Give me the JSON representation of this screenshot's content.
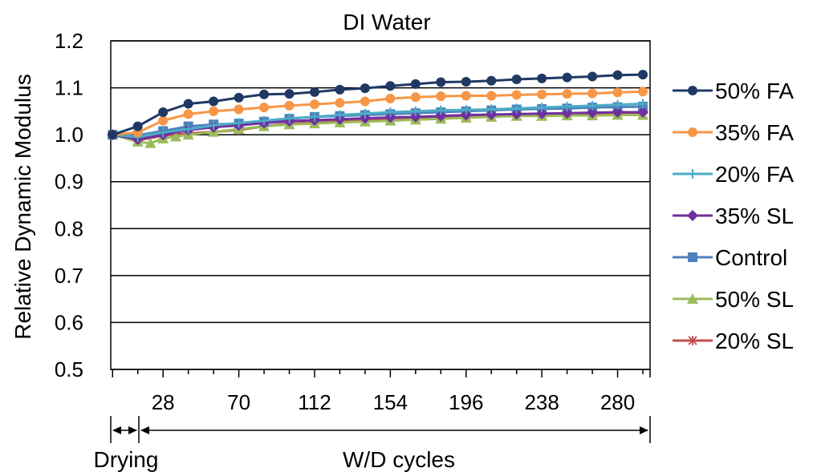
{
  "chart_data": {
    "type": "line",
    "title": "DI Water",
    "ylabel": "Relative Dynamic Modulus",
    "xlabel": "W/D cycles",
    "drying_label": "Drying",
    "ylim": [
      0.5,
      1.2
    ],
    "yticks": [
      "0.5",
      "0.6",
      "0.7",
      "0.8",
      "0.9",
      "1.0",
      "1.1",
      "1.2"
    ],
    "xticks": [
      "28",
      "70",
      "112",
      "154",
      "196",
      "238",
      "280"
    ],
    "grid": true,
    "legend_position": "right",
    "x": [
      0,
      14,
      21,
      28,
      35,
      42,
      49,
      56,
      63,
      70,
      77,
      84,
      91,
      98,
      105,
      112,
      119,
      126,
      133,
      140,
      147,
      154,
      161,
      168,
      175,
      182,
      189,
      196,
      203,
      210,
      217,
      224,
      231,
      238,
      245,
      252,
      259,
      266,
      273,
      280,
      287,
      294
    ],
    "series": [
      {
        "name": "50% FA",
        "color": "#203864",
        "marker": "circle",
        "x": [
          0,
          14,
          28,
          42,
          56,
          70,
          84,
          98,
          112,
          126,
          140,
          154,
          168,
          182,
          196,
          210,
          224,
          238,
          252,
          266,
          280,
          294
        ],
        "values": [
          1.0,
          1.018,
          1.048,
          1.066,
          1.071,
          1.079,
          1.086,
          1.087,
          1.091,
          1.096,
          1.099,
          1.104,
          1.108,
          1.112,
          1.113,
          1.115,
          1.118,
          1.12,
          1.122,
          1.124,
          1.127,
          1.128
        ]
      },
      {
        "name": "35% FA",
        "color": "#f79646",
        "marker": "circle",
        "x": [
          0,
          14,
          28,
          42,
          56,
          70,
          84,
          98,
          112,
          126,
          140,
          154,
          168,
          182,
          196,
          210,
          224,
          238,
          252,
          266,
          280,
          294
        ],
        "values": [
          1.0,
          1.005,
          1.03,
          1.044,
          1.05,
          1.054,
          1.058,
          1.062,
          1.065,
          1.068,
          1.071,
          1.077,
          1.08,
          1.082,
          1.083,
          1.083,
          1.085,
          1.086,
          1.087,
          1.088,
          1.09,
          1.092
        ]
      },
      {
        "name": "20% FA",
        "color": "#4bacc6",
        "marker": "plus",
        "x": [
          0,
          14,
          28,
          42,
          56,
          70,
          84,
          98,
          112,
          126,
          140,
          154,
          168,
          182,
          196,
          210,
          224,
          238,
          252,
          266,
          280,
          294
        ],
        "values": [
          1.0,
          0.995,
          1.005,
          1.012,
          1.02,
          1.025,
          1.03,
          1.035,
          1.038,
          1.042,
          1.045,
          1.048,
          1.05,
          1.052,
          1.053,
          1.054,
          1.056,
          1.058,
          1.06,
          1.062,
          1.064,
          1.066
        ]
      },
      {
        "name": "35% SL",
        "color": "#7030a0",
        "marker": "diamond",
        "x": [
          0,
          14,
          28,
          42,
          56,
          70,
          84,
          98,
          112,
          126,
          140,
          154,
          168,
          182,
          196,
          210,
          224,
          238,
          252,
          266,
          280,
          294
        ],
        "values": [
          1.0,
          0.99,
          1.0,
          1.01,
          1.016,
          1.02,
          1.025,
          1.029,
          1.031,
          1.033,
          1.035,
          1.037,
          1.038,
          1.04,
          1.042,
          1.043,
          1.044,
          1.045,
          1.046,
          1.047,
          1.048,
          1.048
        ]
      },
      {
        "name": "Control",
        "color": "#4f81bd",
        "marker": "square",
        "x": [
          0,
          14,
          28,
          42,
          56,
          70,
          84,
          98,
          112,
          126,
          140,
          154,
          168,
          182,
          196,
          210,
          224,
          238,
          252,
          266,
          280,
          294
        ],
        "values": [
          1.0,
          0.999,
          1.008,
          1.018,
          1.022,
          1.024,
          1.028,
          1.034,
          1.038,
          1.04,
          1.042,
          1.044,
          1.046,
          1.048,
          1.05,
          1.052,
          1.054,
          1.055,
          1.056,
          1.058,
          1.059,
          1.06
        ]
      },
      {
        "name": "50% SL",
        "color": "#9bbb59",
        "marker": "triangle",
        "x": [
          0,
          14,
          21,
          28,
          35,
          42,
          56,
          70,
          84,
          98,
          112,
          126,
          140,
          154,
          168,
          182,
          196,
          210,
          224,
          238,
          252,
          266,
          280,
          294
        ],
        "values": [
          1.0,
          0.985,
          0.982,
          0.992,
          0.996,
          1.0,
          1.006,
          1.012,
          1.018,
          1.022,
          1.024,
          1.026,
          1.028,
          1.03,
          1.032,
          1.034,
          1.036,
          1.038,
          1.04,
          1.04,
          1.041,
          1.041,
          1.042,
          1.042
        ]
      },
      {
        "name": "20% SL",
        "color": "#c0504d",
        "marker": "star",
        "x": [
          0,
          14,
          28,
          42,
          56,
          70,
          84,
          98,
          112,
          126,
          140,
          154,
          168,
          182,
          196,
          210,
          224,
          238,
          252,
          266,
          280,
          294
        ],
        "values": [
          1.0,
          0.988,
          0.998,
          1.003,
          1.006,
          1.01,
          1.018,
          1.024,
          1.026,
          1.028,
          1.03,
          1.033,
          1.036,
          1.038,
          1.04,
          1.041,
          1.042,
          1.044,
          1.045,
          1.045,
          1.045,
          1.045
        ]
      }
    ]
  }
}
